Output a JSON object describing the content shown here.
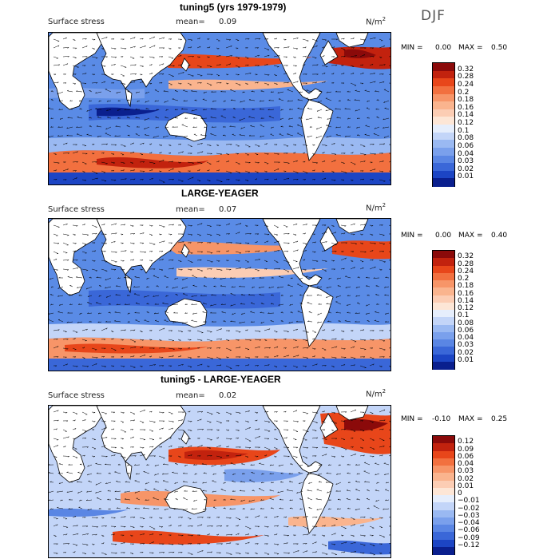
{
  "season": "DJF",
  "chart_data": [
    {
      "type": "heatmap",
      "title": "tuning5 (yrs 1979-1979)",
      "variable": "Surface stress",
      "mean_label": "mean=",
      "mean_value": "0.09",
      "units_base": "N/m",
      "units_exp": "2",
      "min_label": "MIN =",
      "min_value": "0.00",
      "max_label": "MAX =",
      "max_value": "0.50",
      "colorbar_labels": [
        "0.32",
        "0.28",
        "0.24",
        "0.2",
        "0.18",
        "0.16",
        "0.14",
        "0.12",
        "0.1",
        "0.08",
        "0.06",
        "0.04",
        "0.03",
        "0.02",
        "0.01"
      ],
      "colorbar_colors": [
        "#8b0a0a",
        "#c2220e",
        "#e8461a",
        "#f2703f",
        "#f79568",
        "#fab48e",
        "#fccdb4",
        "#fde6d6",
        "#e6eefc",
        "#c3d5f8",
        "#9ab9f2",
        "#7aa0ec",
        "#5a86e4",
        "#3a67d8",
        "#1c45c4",
        "#0a1f8e"
      ]
    },
    {
      "type": "heatmap",
      "title": "LARGE-YEAGER",
      "variable": "Surface stress",
      "mean_label": "mean=",
      "mean_value": "0.07",
      "units_base": "N/m",
      "units_exp": "2",
      "min_label": "MIN =",
      "min_value": "0.00",
      "max_label": "MAX =",
      "max_value": "0.40",
      "colorbar_labels": [
        "0.32",
        "0.28",
        "0.24",
        "0.2",
        "0.18",
        "0.16",
        "0.14",
        "0.12",
        "0.1",
        "0.08",
        "0.06",
        "0.04",
        "0.03",
        "0.02",
        "0.01"
      ],
      "colorbar_colors": [
        "#8b0a0a",
        "#c2220e",
        "#e8461a",
        "#f2703f",
        "#f79568",
        "#fab48e",
        "#fccdb4",
        "#fde6d6",
        "#e6eefc",
        "#c3d5f8",
        "#9ab9f2",
        "#7aa0ec",
        "#5a86e4",
        "#3a67d8",
        "#1c45c4",
        "#0a1f8e"
      ]
    },
    {
      "type": "heatmap",
      "title": "tuning5 - LARGE-YEAGER",
      "variable": "Surface stress",
      "mean_label": "mean=",
      "mean_value": "0.02",
      "units_base": "N/m",
      "units_exp": "2",
      "min_label": "MIN =",
      "min_value": "-0.10",
      "max_label": "MAX =",
      "max_value": "0.25",
      "colorbar_labels": [
        "0.12",
        "0.09",
        "0.06",
        "0.04",
        "0.03",
        "0.02",
        "0.01",
        "0",
        "−0.01",
        "−0.02",
        "−0.03",
        "−0.04",
        "−0.06",
        "−0.09",
        "−0.12"
      ],
      "colorbar_colors": [
        "#8b0a0a",
        "#c2220e",
        "#e8461a",
        "#f2703f",
        "#f79568",
        "#fab48e",
        "#fccdb4",
        "#fde6d6",
        "#e6eefc",
        "#c3d5f8",
        "#9ab9f2",
        "#7aa0ec",
        "#5a86e4",
        "#3a67d8",
        "#1c45c4",
        "#0a1f8e"
      ]
    }
  ]
}
